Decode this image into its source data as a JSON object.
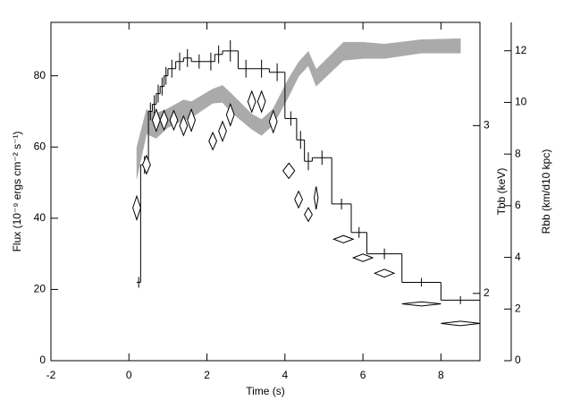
{
  "chart_data": {
    "type": "combo",
    "x_label": "Time (s)",
    "y_label": "Flux (10⁻⁹ ergs cm⁻² s⁻¹)",
    "y2_label": "Tbb (keV)",
    "y3_label": "Rbb (km/d10 kpc)",
    "xlim": [
      -2,
      9
    ],
    "xticks": [
      -2,
      0,
      2,
      4,
      6,
      8
    ],
    "ylim": [
      0,
      95
    ],
    "yticks": [
      0,
      20,
      40,
      60,
      80
    ],
    "y2lim": [
      1.7,
      3.85
    ],
    "y2ticks": [
      2,
      3
    ],
    "y2log": true,
    "y3lim": [
      0,
      13.1
    ],
    "y3ticks": [
      0,
      2,
      4,
      6,
      8,
      10,
      12
    ],
    "series": [
      {
        "type": "step",
        "axis": "y",
        "color": "#000000",
        "bins": [
          0.2,
          0.3,
          0.5,
          0.6,
          0.7,
          0.8,
          0.9,
          1.0,
          1.2,
          1.4,
          1.6,
          2.0,
          2.2,
          2.4,
          2.8,
          3.2,
          3.6,
          4.0,
          4.3,
          4.5,
          4.7,
          5.2,
          5.7,
          6.1,
          7.0,
          8.0,
          9.0
        ],
        "values": [
          22,
          55,
          70,
          72,
          75,
          77,
          80,
          82,
          84,
          85,
          84,
          84,
          86,
          87,
          82,
          82,
          81,
          68,
          62,
          56,
          57,
          44,
          36,
          30,
          22,
          17
        ],
        "errors": [
          1,
          2,
          2,
          2,
          2,
          2,
          2,
          2,
          2,
          2,
          1.5,
          2,
          2,
          2.5,
          2,
          2,
          2,
          1.5,
          2,
          2,
          1.5,
          1,
          1,
          1,
          0.7,
          0.6
        ]
      },
      {
        "type": "diamond",
        "axis": "y2",
        "color": "#000000",
        "x": [
          0.2,
          0.45,
          0.7,
          0.9,
          1.15,
          1.4,
          1.6,
          2.15,
          2.4,
          2.6,
          3.15,
          3.4,
          3.7,
          4.1,
          4.35,
          4.6,
          4.8,
          5.5,
          6.0,
          6.55,
          7.5,
          8.5
        ],
        "xerr": [
          0.1,
          0.1,
          0.1,
          0.1,
          0.1,
          0.1,
          0.1,
          0.1,
          0.1,
          0.1,
          0.1,
          0.1,
          0.1,
          0.15,
          0.1,
          0.1,
          0.05,
          0.25,
          0.25,
          0.25,
          0.5,
          0.5
        ],
        "values": [
          2.46,
          2.73,
          3.04,
          3.04,
          3.04,
          3.0,
          3.04,
          2.89,
          2.96,
          3.08,
          3.18,
          3.18,
          3.03,
          2.69,
          2.51,
          2.42,
          2.52,
          2.28,
          2.18,
          2.1,
          1.95,
          1.86
        ],
        "yerr": [
          0.07,
          0.06,
          0.08,
          0.07,
          0.07,
          0.07,
          0.08,
          0.06,
          0.07,
          0.08,
          0.08,
          0.08,
          0.08,
          0.05,
          0.05,
          0.04,
          0.07,
          0.02,
          0.02,
          0.02,
          0.01,
          0.01
        ]
      },
      {
        "type": "band",
        "axis": "y3",
        "color": "#aaaaaa",
        "x": [
          0.2,
          0.45,
          0.7,
          1.0,
          1.4,
          1.6,
          2.15,
          2.4,
          2.6,
          3.15,
          3.4,
          3.7,
          4.1,
          4.35,
          4.6,
          4.8,
          5.5,
          6.0,
          6.55,
          7.5,
          8.5
        ],
        "low": [
          7.05,
          8.78,
          8.61,
          9.03,
          9.31,
          9.41,
          9.97,
          10.0,
          9.65,
          8.96,
          8.72,
          9.13,
          10.24,
          11.01,
          11.42,
          10.63,
          11.63,
          11.7,
          11.7,
          11.91,
          11.91
        ],
        "high": [
          8.26,
          9.72,
          9.58,
          9.76,
          10.1,
          10.03,
          10.52,
          10.66,
          10.38,
          9.55,
          9.34,
          9.76,
          10.94,
          11.56,
          11.98,
          11.28,
          12.33,
          12.33,
          12.26,
          12.43,
          12.47
        ]
      }
    ]
  }
}
